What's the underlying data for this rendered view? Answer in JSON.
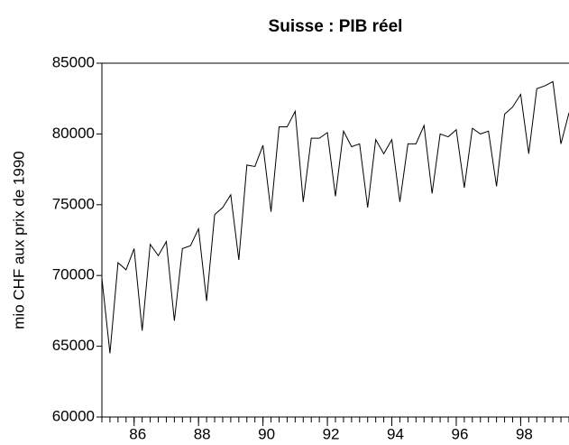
{
  "chart_data": {
    "type": "line",
    "title": "Suisse : PIB réel",
    "ylabel": "mio CHF aux prix de 1990",
    "x": [
      1985,
      1985.25,
      1985.5,
      1985.75,
      1986,
      1986.25,
      1986.5,
      1986.75,
      1987,
      1987.25,
      1987.5,
      1987.75,
      1988,
      1988.25,
      1988.5,
      1988.75,
      1989,
      1989.25,
      1989.5,
      1989.75,
      1990,
      1990.25,
      1990.5,
      1990.75,
      1991,
      1991.25,
      1991.5,
      1991.75,
      1992,
      1992.25,
      1992.5,
      1992.75,
      1993,
      1993.25,
      1993.5,
      1993.75,
      1994,
      1994.25,
      1994.5,
      1994.75,
      1995,
      1995.25,
      1995.5,
      1995.75,
      1996,
      1996.25,
      1996.5,
      1996.75,
      1997,
      1997.25,
      1997.5,
      1997.75,
      1998,
      1998.25,
      1998.5,
      1998.75,
      1999,
      1999.25,
      1999.5
    ],
    "series": [
      {
        "color": "#000000",
        "values": [
          69800,
          64500,
          70900,
          70400,
          71900,
          66100,
          72200,
          71400,
          72400,
          66800,
          71900,
          72100,
          73300,
          68200,
          74300,
          74800,
          75700,
          71100,
          77800,
          77700,
          79200,
          74500,
          80500,
          80500,
          81600,
          75200,
          79700,
          79700,
          80100,
          75600,
          80200,
          79100,
          79300,
          74800,
          79600,
          78600,
          79600,
          75200,
          79300,
          79300,
          80600,
          75800,
          80000,
          79800,
          80300,
          76200,
          80400,
          80000,
          80200,
          76300,
          81400,
          81900,
          82800,
          78600,
          83200,
          83400,
          83700,
          79300,
          81500
        ]
      }
    ],
    "xlim": [
      1985,
      1999.5
    ],
    "ylim": [
      60000,
      85000
    ],
    "xticks": [
      {
        "value": 1986,
        "label": "86"
      },
      {
        "value": 1988,
        "label": "88"
      },
      {
        "value": 1990,
        "label": "90"
      },
      {
        "value": 1992,
        "label": "92"
      },
      {
        "value": 1994,
        "label": "94"
      },
      {
        "value": 1996,
        "label": "96"
      },
      {
        "value": 1998,
        "label": "98"
      }
    ],
    "yticks": [
      60000,
      65000,
      70000,
      75000,
      80000,
      85000
    ]
  }
}
